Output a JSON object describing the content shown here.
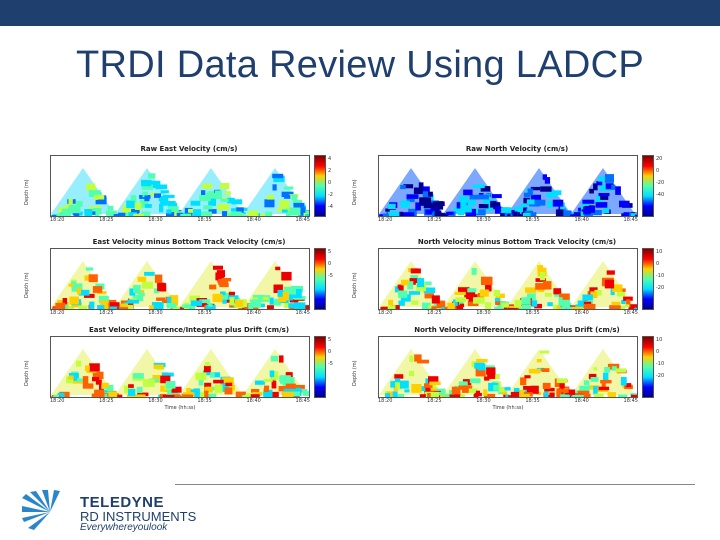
{
  "slide": {
    "title": "TRDI Data Review Using LADCP",
    "colors": {
      "topbar": "#1f3f6e",
      "title": "#1f3f6e"
    }
  },
  "panels": [
    {
      "title": "Raw East Velocity (cm/s)",
      "ylabel": "Depth (m)",
      "xticks": [
        "18:20",
        "18:25",
        "18:30",
        "18:35",
        "18:40",
        "18:45"
      ],
      "xlabel": "",
      "cbticks": [
        "4",
        "2",
        "0",
        "-2",
        "-4"
      ],
      "style": "wave-east"
    },
    {
      "title": "Raw North Velocity (cm/s)",
      "ylabel": "Depth (m)",
      "xticks": [
        "18:20",
        "18:25",
        "18:30",
        "18:35",
        "18:40",
        "18:45"
      ],
      "xlabel": "",
      "cbticks": [
        "20",
        "0",
        "-20",
        "-40"
      ],
      "style": "wave-north"
    },
    {
      "title": "East Velocity minus Bottom Track Velocity (cm/s)",
      "ylabel": "Depth (m)",
      "xticks": [
        "18:20",
        "18:25",
        "18:30",
        "18:35",
        "18:40",
        "18:45"
      ],
      "xlabel": "",
      "cbticks": [
        "5",
        "0",
        "-5"
      ],
      "style": "mixed"
    },
    {
      "title": "North Velocity minus Bottom Track Velocity (cm/s)",
      "ylabel": "Depth (m)",
      "xticks": [
        "18:20",
        "18:25",
        "18:30",
        "18:35",
        "18:40",
        "18:45"
      ],
      "xlabel": "",
      "cbticks": [
        "10",
        "0",
        "-10",
        "-20"
      ],
      "style": "mixed-north"
    },
    {
      "title": "East Velocity Difference/Integrate plus Drift (cm/s)",
      "ylabel": "Depth (m)",
      "xticks": [
        "18:20",
        "18:25",
        "18:30",
        "18:35",
        "18:40",
        "18:45"
      ],
      "xlabel": "Time (hh:ss)",
      "cbticks": [
        "5",
        "0",
        "-5"
      ],
      "style": "drift"
    },
    {
      "title": "North Velocity Difference/Integrate plus Drift (cm/s)",
      "ylabel": "Depth (m)",
      "xticks": [
        "18:20",
        "18:25",
        "18:30",
        "18:35",
        "18:40",
        "18:45"
      ],
      "xlabel": "Time (hh:ss)",
      "cbticks": [
        "10",
        "0",
        "-10",
        "-20"
      ],
      "style": "drift-north"
    }
  ],
  "logo": {
    "line1": "TELEDYNE",
    "line2": "RD INSTRUMENTS",
    "line3": "Everywhereyoulook",
    "color": "#1f3f6e"
  }
}
